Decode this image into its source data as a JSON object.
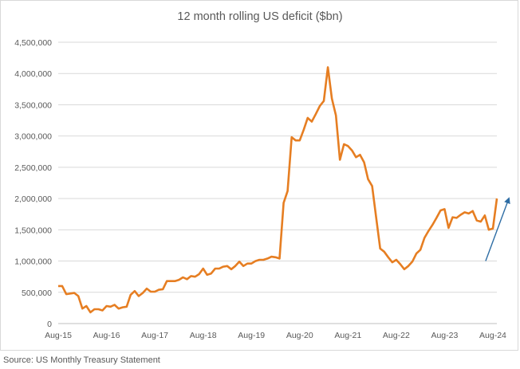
{
  "chart_data": {
    "type": "line",
    "title": "12 month rolling US deficit ($bn)",
    "xlabel": "",
    "ylabel": "",
    "ylim": [
      0,
      4500000
    ],
    "yticks": [
      "0",
      "500,000",
      "1,000,000",
      "1,500,000",
      "2,000,000",
      "2,500,000",
      "3,000,000",
      "3,500,000",
      "4,000,000",
      "4,500,000"
    ],
    "xticks": [
      "Aug-15",
      "Aug-16",
      "Aug-17",
      "Aug-18",
      "Aug-19",
      "Aug-20",
      "Aug-21",
      "Aug-22",
      "Aug-23",
      "Aug-24"
    ],
    "grid": "horizontal",
    "line_color": "#E67E22",
    "arrow_color": "#2E6DA4",
    "series": [
      {
        "x_start": "Aug-15",
        "frequency": "monthly",
        "values": [
          600000,
          600000,
          470000,
          480000,
          490000,
          440000,
          240000,
          280000,
          180000,
          230000,
          230000,
          210000,
          280000,
          270000,
          300000,
          240000,
          260000,
          270000,
          460000,
          520000,
          440000,
          490000,
          560000,
          510000,
          510000,
          540000,
          550000,
          680000,
          680000,
          680000,
          700000,
          740000,
          710000,
          760000,
          750000,
          790000,
          880000,
          780000,
          800000,
          880000,
          880000,
          910000,
          920000,
          870000,
          920000,
          990000,
          920000,
          960000,
          960000,
          1000000,
          1020000,
          1020000,
          1040000,
          1070000,
          1060000,
          1040000,
          1930000,
          2120000,
          2980000,
          2930000,
          2930000,
          3100000,
          3290000,
          3230000,
          3350000,
          3480000,
          3560000,
          4100000,
          3600000,
          3330000,
          2620000,
          2870000,
          2840000,
          2770000,
          2660000,
          2700000,
          2580000,
          2310000,
          2200000,
          1700000,
          1200000,
          1150000,
          1060000,
          980000,
          1020000,
          950000,
          870000,
          920000,
          990000,
          1120000,
          1180000,
          1370000,
          1480000,
          1580000,
          1690000,
          1810000,
          1830000,
          1530000,
          1700000,
          1690000,
          1740000,
          1780000,
          1760000,
          1800000,
          1650000,
          1630000,
          1730000,
          1500000,
          1520000,
          2000000
        ]
      }
    ],
    "annotation": "upward-trend-arrow"
  },
  "footer": {
    "source": "Source: US Monthly Treasury Statement"
  }
}
